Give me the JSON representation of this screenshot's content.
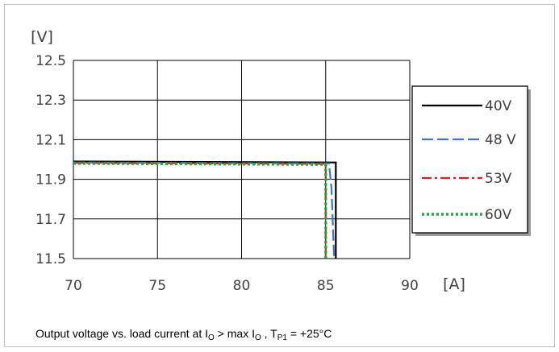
{
  "chart_data": {
    "type": "line",
    "xlabel": "[A]",
    "ylabel": "[V]",
    "xlim": [
      70,
      90
    ],
    "ylim": [
      11.5,
      12.5
    ],
    "xticks": [
      "70",
      "75",
      "80",
      "85",
      "90"
    ],
    "yticks": [
      "12.5",
      "12.3",
      "12.1",
      "11.9",
      "11.7",
      "11.5"
    ],
    "grid": true,
    "legend_position": "right",
    "series": [
      {
        "name": "40V",
        "color": "#000000",
        "dash": "solid",
        "x": [
          70,
          85.6,
          85.6
        ],
        "y": [
          11.99,
          11.985,
          11.5
        ]
      },
      {
        "name": "48 V",
        "color": "#4472c4",
        "dash": "long-dash",
        "x": [
          70,
          85.2,
          85.35,
          85.5
        ],
        "y": [
          11.985,
          11.98,
          11.85,
          11.5
        ]
      },
      {
        "name": "53V",
        "color": "#e81818",
        "dash": "dash-dot",
        "x": [
          70,
          85.0,
          85.0
        ],
        "y": [
          11.983,
          11.978,
          11.5
        ]
      },
      {
        "name": "60V",
        "color": "#1aae3f",
        "dash": "dotted",
        "x": [
          70,
          85.0,
          85.0
        ],
        "y": [
          11.98,
          11.975,
          11.5
        ]
      }
    ]
  },
  "caption": {
    "prefix": "Output voltage vs. load current at I",
    "sub1": "O",
    "mid": " > max I",
    "sub2": "O",
    "sep": " , T",
    "sub3": "P1",
    "suffix": " = +25°C"
  }
}
